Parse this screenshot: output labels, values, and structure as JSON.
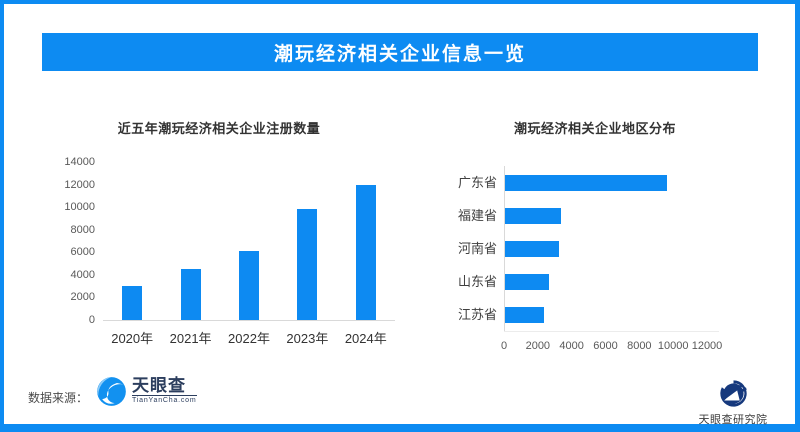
{
  "header": {
    "title": "潮玩经济相关企业信息一览"
  },
  "colors": {
    "accent": "#0d8bf2",
    "bar": "#0d8af2",
    "logo_blue": "#1291f0",
    "navy": "#16397d"
  },
  "chart_data": [
    {
      "type": "bar",
      "orientation": "vertical",
      "title": "近五年潮玩经济相关企业注册数量",
      "categories": [
        "2020年",
        "2021年",
        "2022年",
        "2023年",
        "2024年"
      ],
      "values": [
        3000,
        4500,
        6100,
        9800,
        12000
      ],
      "yticks": [
        0,
        2000,
        4000,
        6000,
        8000,
        10000,
        12000,
        14000
      ],
      "ylim": [
        0,
        14000
      ],
      "grid": false,
      "legend": "none",
      "color": "#0d8af2"
    },
    {
      "type": "bar",
      "orientation": "horizontal",
      "title": "潮玩经济相关企业地区分布",
      "categories": [
        "广东省",
        "福建省",
        "河南省",
        "山东省",
        "江苏省"
      ],
      "values": [
        9600,
        3300,
        3200,
        2600,
        2300
      ],
      "xticks": [
        0,
        2000,
        4000,
        6000,
        8000,
        10000,
        12000
      ],
      "xlim": [
        0,
        12000
      ],
      "grid": false,
      "legend": "none",
      "color": "#0d8af2"
    }
  ],
  "footer": {
    "source_label": "数据来源：",
    "logo_text": "天眼查",
    "logo_subtext": "TianYanCha.com",
    "institute_name": "天眼查研究院"
  }
}
